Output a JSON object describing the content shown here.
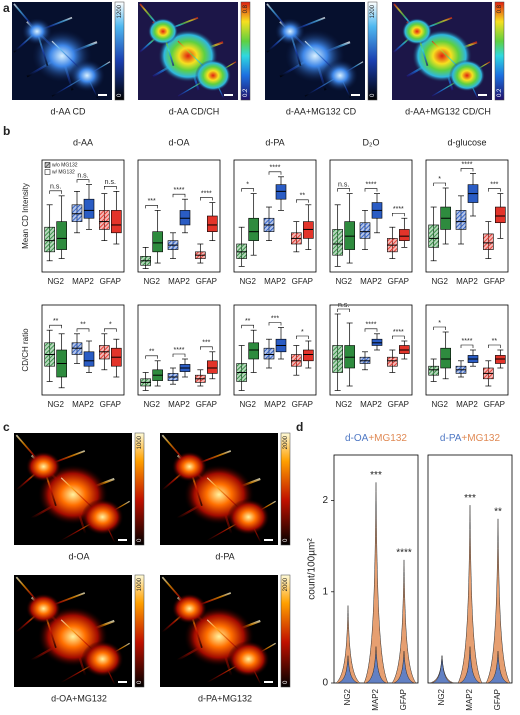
{
  "figure": {
    "panel_labels": [
      "a",
      "b",
      "c",
      "d"
    ],
    "panel_a": [
      {
        "caption": "d-AA CD",
        "colormap": "blues",
        "colorbar": [
          1200,
          0
        ]
      },
      {
        "caption": "d-AA CD/CH",
        "colormap": "jet",
        "colorbar": [
          0.8,
          0.2
        ]
      },
      {
        "caption": "d-AA+MG132 CD",
        "colormap": "blues",
        "colorbar": [
          1200,
          0
        ]
      },
      {
        "caption": "d-AA+MG132 CD/CH",
        "colormap": "jet",
        "colorbar": [
          0.8,
          0.2
        ]
      }
    ],
    "panel_c": [
      {
        "caption": "d-OA",
        "colormap": "hot",
        "colorbar": [
          1000,
          0
        ]
      },
      {
        "caption": "d-PA",
        "colormap": "hot",
        "colorbar": [
          2000,
          0
        ]
      },
      {
        "caption": "d-OA+MG132",
        "colormap": "hot",
        "colorbar": [
          1000,
          0
        ]
      },
      {
        "caption": "d-PA+MG132",
        "colormap": "hot",
        "colorbar": [
          2000,
          0
        ]
      }
    ]
  },
  "chart_data": [
    {
      "type": "box",
      "title": "d-AA",
      "ylabel": "Mean CD Intensity",
      "categories": [
        "NG2",
        "MAP2",
        "GFAP"
      ],
      "colors": [
        "#2e8b3e",
        "#2a5cc4",
        "#e3342a"
      ],
      "ylim": [
        0,
        100
      ],
      "series": [
        {
          "name": "w/o MG132",
          "hatched": true,
          "values": [
            [
              10,
              18,
              28,
              40,
              60
            ],
            [
              35,
              45,
              52,
              60,
              72
            ],
            [
              28,
              38,
              45,
              55,
              70
            ]
          ]
        },
        {
          "name": "w/ MG132",
          "hatched": false,
          "values": [
            [
              12,
              20,
              30,
              45,
              68
            ],
            [
              38,
              48,
              55,
              65,
              78
            ],
            [
              25,
              35,
              42,
              55,
              72
            ]
          ]
        }
      ],
      "significance": [
        "n.s.",
        "n.s.",
        "n.s."
      ]
    },
    {
      "type": "box",
      "title": "d-OA",
      "categories": [
        "NG2",
        "MAP2",
        "GFAP"
      ],
      "colors": [
        "#2e8b3e",
        "#2a5cc4",
        "#e3342a"
      ],
      "ylim": [
        0,
        100
      ],
      "series": [
        {
          "hatched": true,
          "values": [
            [
              3,
              6,
              10,
              14,
              22
            ],
            [
              12,
              20,
              24,
              28,
              35
            ],
            [
              8,
              12,
              15,
              18,
              25
            ]
          ]
        },
        {
          "hatched": false,
          "values": [
            [
              8,
              18,
              26,
              36,
              55
            ],
            [
              35,
              42,
              48,
              55,
              65
            ],
            [
              28,
              36,
              42,
              50,
              62
            ]
          ]
        }
      ],
      "significance": [
        "***",
        "****",
        "****"
      ]
    },
    {
      "type": "box",
      "title": "d-PA",
      "categories": [
        "NG2",
        "MAP2",
        "GFAP"
      ],
      "colors": [
        "#2e8b3e",
        "#2a5cc4",
        "#e3342a"
      ],
      "ylim": [
        0,
        100
      ],
      "series": [
        {
          "hatched": true,
          "values": [
            [
              5,
              12,
              18,
              25,
              40
            ],
            [
              28,
              36,
              42,
              48,
              58
            ],
            [
              18,
              25,
              30,
              35,
              45
            ]
          ]
        },
        {
          "hatched": false,
          "values": [
            [
              15,
              28,
              36,
              48,
              70
            ],
            [
              55,
              65,
              72,
              78,
              85
            ],
            [
              20,
              30,
              38,
              45,
              60
            ]
          ]
        }
      ],
      "significance": [
        "*",
        "****",
        "**"
      ]
    },
    {
      "type": "box",
      "title": "D₂O",
      "categories": [
        "NG2",
        "MAP2",
        "GFAP"
      ],
      "colors": [
        "#2e8b3e",
        "#2a5cc4",
        "#e3342a"
      ],
      "ylim": [
        0,
        100
      ],
      "series": [
        {
          "hatched": true,
          "values": [
            [
              5,
              15,
              25,
              38,
              60
            ],
            [
              20,
              30,
              36,
              44,
              55
            ],
            [
              12,
              18,
              24,
              30,
              40
            ]
          ]
        },
        {
          "hatched": false,
          "values": [
            [
              8,
              20,
              32,
              45,
              70
            ],
            [
              35,
              48,
              55,
              62,
              70
            ],
            [
              22,
              28,
              32,
              38,
              48
            ]
          ]
        }
      ],
      "significance": [
        "n.s.",
        "****",
        "****"
      ]
    },
    {
      "type": "box",
      "title": "d-glucose",
      "categories": [
        "NG2",
        "MAP2",
        "GFAP"
      ],
      "colors": [
        "#2e8b3e",
        "#2a5cc4",
        "#e3342a"
      ],
      "ylim": [
        0,
        100
      ],
      "series": [
        {
          "hatched": true,
          "values": [
            [
              10,
              22,
              30,
              42,
              58
            ],
            [
              25,
              38,
              45,
              55,
              68
            ],
            [
              12,
              20,
              26,
              34,
              45
            ]
          ]
        },
        {
          "hatched": false,
          "values": [
            [
              25,
              38,
              48,
              58,
              75
            ],
            [
              50,
              62,
              70,
              78,
              88
            ],
            [
              30,
              44,
              50,
              58,
              70
            ]
          ]
        }
      ],
      "significance": [
        "*",
        "****",
        "***"
      ]
    },
    {
      "type": "box",
      "ylabel": "CD/CH ratio",
      "categories": [
        "NG2",
        "MAP2",
        "GFAP"
      ],
      "colors": [
        "#2e8b3e",
        "#2a5cc4",
        "#e3342a"
      ],
      "ylim": [
        0,
        100
      ],
      "series": [
        {
          "hatched": true,
          "values": [
            [
              15,
              32,
              45,
              58,
              72
            ],
            [
              35,
              45,
              52,
              58,
              68
            ],
            [
              28,
              40,
              48,
              55,
              68
            ]
          ]
        },
        {
          "hatched": false,
          "values": [
            [
              8,
              20,
              35,
              50,
              68
            ],
            [
              25,
              32,
              38,
              48,
              60
            ],
            [
              20,
              32,
              42,
              52,
              62
            ]
          ]
        }
      ],
      "significance": [
        "**",
        "**",
        "*"
      ]
    },
    {
      "type": "box",
      "categories": [
        "NG2",
        "MAP2",
        "GFAP"
      ],
      "colors": [
        "#2e8b3e",
        "#2a5cc4",
        "#e3342a"
      ],
      "ylim": [
        0,
        100
      ],
      "series": [
        {
          "hatched": true,
          "values": [
            [
              5,
              10,
              14,
              18,
              25
            ],
            [
              12,
              16,
              20,
              24,
              30
            ],
            [
              10,
              14,
              18,
              22,
              28
            ]
          ]
        },
        {
          "hatched": false,
          "values": [
            [
              10,
              16,
              22,
              28,
              38
            ],
            [
              20,
              26,
              30,
              34,
              40
            ],
            [
              18,
              24,
              30,
              38,
              48
            ]
          ]
        }
      ],
      "significance": [
        "**",
        "****",
        "***"
      ]
    },
    {
      "type": "box",
      "categories": [
        "NG2",
        "MAP2",
        "GFAP"
      ],
      "colors": [
        "#2e8b3e",
        "#2a5cc4",
        "#e3342a"
      ],
      "ylim": [
        0,
        100
      ],
      "series": [
        {
          "hatched": true,
          "values": [
            [
              5,
              15,
              25,
              35,
              55
            ],
            [
              30,
              40,
              45,
              52,
              62
            ],
            [
              22,
              32,
              38,
              45,
              55
            ]
          ]
        },
        {
          "hatched": false,
          "values": [
            [
              25,
              40,
              50,
              58,
              72
            ],
            [
              40,
              48,
              55,
              62,
              75
            ],
            [
              30,
              38,
              45,
              50,
              60
            ]
          ]
        }
      ],
      "significance": [
        "**",
        "***",
        "*"
      ]
    },
    {
      "type": "box",
      "categories": [
        "NG2",
        "MAP2",
        "GFAP"
      ],
      "colors": [
        "#2e8b3e",
        "#2a5cc4",
        "#e3342a"
      ],
      "ylim": [
        0,
        100
      ],
      "series": [
        {
          "hatched": true,
          "values": [
            [
              5,
              25,
              40,
              55,
              90
            ],
            [
              28,
              35,
              38,
              42,
              48
            ],
            [
              25,
              32,
              38,
              42,
              50
            ]
          ]
        },
        {
          "hatched": false,
          "values": [
            [
              10,
              30,
              42,
              55,
              80
            ],
            [
              50,
              55,
              58,
              62,
              68
            ],
            [
              40,
              46,
              50,
              55,
              60
            ]
          ]
        }
      ],
      "significance": [
        "n.s.",
        "****",
        "****"
      ]
    },
    {
      "type": "box",
      "categories": [
        "NG2",
        "MAP2",
        "GFAP"
      ],
      "colors": [
        "#2e8b3e",
        "#2a5cc4",
        "#e3342a"
      ],
      "ylim": [
        0,
        100
      ],
      "series": [
        {
          "hatched": true,
          "values": [
            [
              15,
              22,
              28,
              32,
              40
            ],
            [
              20,
              24,
              28,
              32,
              38
            ],
            [
              10,
              18,
              24,
              30,
              38
            ]
          ]
        },
        {
          "hatched": false,
          "values": [
            [
              18,
              30,
              40,
              52,
              70
            ],
            [
              32,
              36,
              40,
              44,
              50
            ],
            [
              30,
              35,
              40,
              44,
              50
            ]
          ]
        }
      ],
      "significance": [
        "*",
        "****",
        "**"
      ]
    },
    {
      "type": "violin",
      "title_parts": [
        {
          "text": "d-OA",
          "color": "#4f78c4"
        },
        {
          "text": "+MG132",
          "color": "#e08a55"
        }
      ],
      "ylabel": "count/100µm²",
      "categories": [
        "NG2",
        "MAP2",
        "GFAP"
      ],
      "ylim": [
        0,
        2.5
      ],
      "yticks": [
        0,
        1,
        2
      ],
      "series": [
        {
          "color": "#5b7fc8",
          "values": [
            0.3,
            0.4,
            0.35
          ]
        },
        {
          "color": "#e59a6a",
          "values": [
            0.85,
            2.2,
            1.35
          ]
        }
      ],
      "significance": [
        null,
        "***",
        "****"
      ]
    },
    {
      "type": "violin",
      "title_parts": [
        {
          "text": "d-PA",
          "color": "#4f78c4"
        },
        {
          "text": "+MG132",
          "color": "#e08a55"
        }
      ],
      "categories": [
        "NG2",
        "MAP2",
        "GFAP"
      ],
      "ylim": [
        0,
        2.5
      ],
      "series": [
        {
          "color": "#5b7fc8",
          "values": [
            0.3,
            0.4,
            0.35
          ]
        },
        {
          "color": "#e59a6a",
          "values": [
            0.3,
            1.95,
            1.8
          ]
        }
      ],
      "significance": [
        null,
        "***",
        "**"
      ]
    }
  ]
}
